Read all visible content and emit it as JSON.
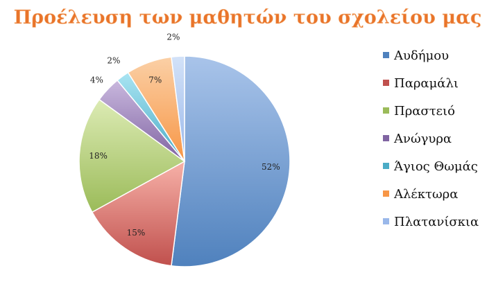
{
  "chart_data": {
    "type": "pie",
    "title": "Προέλευση των μαθητών του σχολείου μας",
    "categories": [
      "Αυδήμου",
      "Παραμάλι",
      "Πραστειό",
      "Ανώγυρα",
      "Άγιος Θωμάς",
      "Αλέκτωρα",
      "Πλατανίσκια"
    ],
    "values": [
      52,
      15,
      18,
      4,
      2,
      7,
      2
    ],
    "labels": [
      "52%",
      "15%",
      "18%",
      "4%",
      "2%",
      "7%",
      "2%"
    ],
    "colors": [
      [
        "#4f81bd",
        "#a9c4ea"
      ],
      [
        "#c0504d",
        "#f7b1a8"
      ],
      [
        "#9bbb59",
        "#dcebb4"
      ],
      [
        "#8064a2",
        "#c9b8de"
      ],
      [
        "#4bacc6",
        "#a9e4f2"
      ],
      [
        "#f79646",
        "#fbd0a6"
      ],
      [
        "#9ab8ea",
        "#d3e2f8"
      ]
    ],
    "legend_position": "right",
    "start_angle_deg": 0,
    "direction": "clockwise"
  }
}
